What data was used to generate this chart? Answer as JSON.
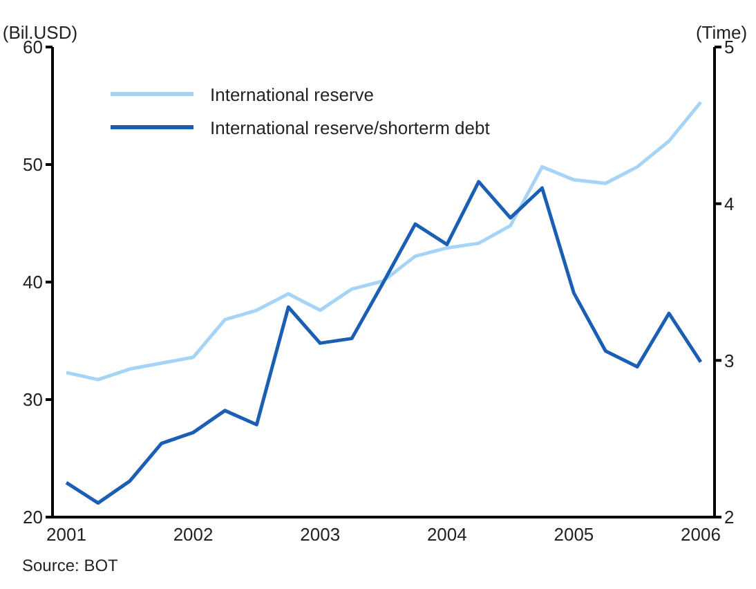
{
  "chart_data": {
    "type": "line",
    "categories": [
      "2001",
      null,
      null,
      null,
      "2002",
      null,
      null,
      null,
      "2003",
      null,
      null,
      null,
      "2004",
      null,
      null,
      null,
      "2005",
      null,
      null,
      null,
      "2006"
    ],
    "series": [
      {
        "name": "International reserve",
        "color": "#a6d4f7",
        "values": [
          32.3,
          31.7,
          32.6,
          33.1,
          33.6,
          36.8,
          37.6,
          39.0,
          37.6,
          39.4,
          40.1,
          42.2,
          42.9,
          43.3,
          44.8,
          49.8,
          48.7,
          48.4,
          49.8,
          52.0,
          55.3
        ]
      },
      {
        "name": "International reserve/shorterm debt",
        "color": "#1a5fb4",
        "axis": "y2",
        "values": [
          2.22,
          2.09,
          2.23,
          2.47,
          2.54,
          2.68,
          2.59,
          3.34,
          3.11,
          3.14,
          3.5,
          3.87,
          3.74,
          4.14,
          3.91,
          4.1,
          3.43,
          3.06,
          2.96,
          3.3,
          2.99
        ]
      }
    ],
    "ylabel": "(Bil.USD)",
    "y2label": "(Time)",
    "ylim": [
      20,
      60
    ],
    "yticks": [
      20,
      30,
      40,
      50,
      60
    ],
    "y2lim": [
      2,
      5
    ],
    "y2ticks": [
      2,
      3,
      4,
      5
    ],
    "legend": "top left",
    "grid": false,
    "marker": "none",
    "line_style": "solid",
    "annotations": [
      "Source: BOT"
    ]
  }
}
